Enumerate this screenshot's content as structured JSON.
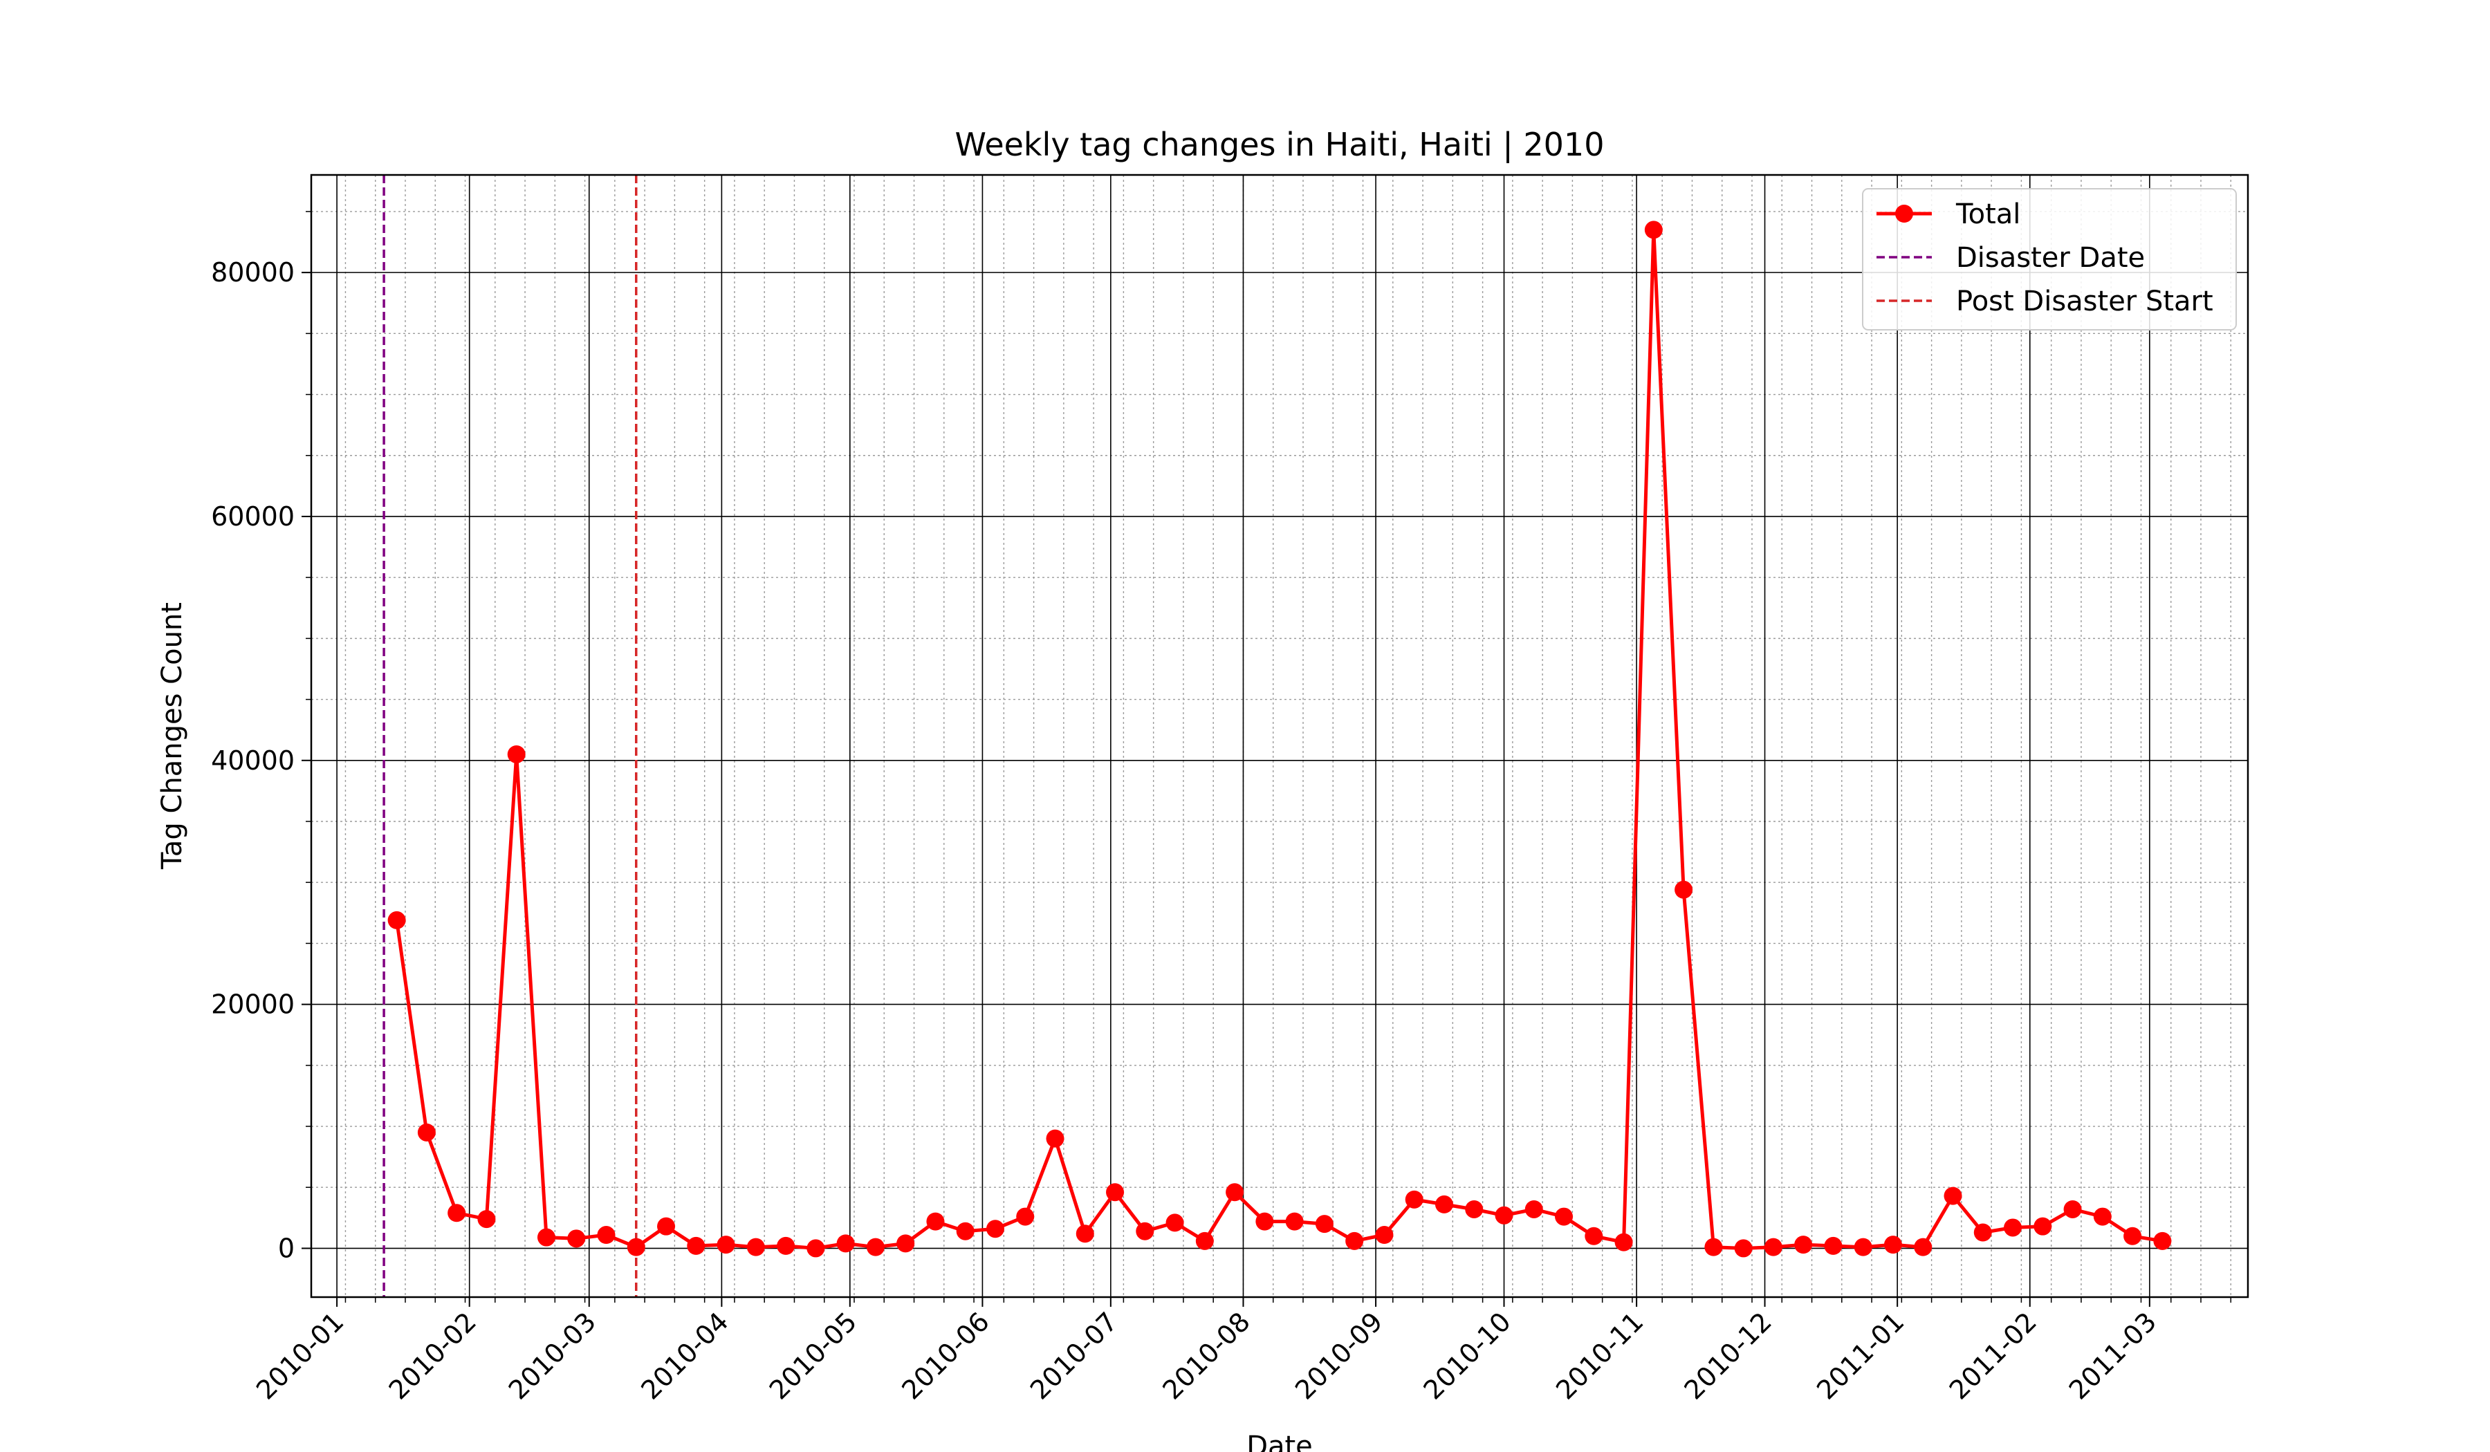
{
  "chart_data": {
    "type": "line",
    "title": "Weekly tag changes in Haiti, Haiti | 2010",
    "xlabel": "Date",
    "ylabel": "Tag Changes Count",
    "ylim": [
      -4000,
      88000
    ],
    "xlim": [
      "2009-12-26",
      "2011-03-24"
    ],
    "grid": true,
    "legend_position": "top-right",
    "x_ticks": [
      {
        "date": "2010-01-01",
        "label": "2010-01"
      },
      {
        "date": "2010-02-01",
        "label": "2010-02"
      },
      {
        "date": "2010-03-01",
        "label": "2010-03"
      },
      {
        "date": "2010-04-01",
        "label": "2010-04"
      },
      {
        "date": "2010-05-01",
        "label": "2010-05"
      },
      {
        "date": "2010-06-01",
        "label": "2010-06"
      },
      {
        "date": "2010-07-01",
        "label": "2010-07"
      },
      {
        "date": "2010-08-01",
        "label": "2010-08"
      },
      {
        "date": "2010-09-01",
        "label": "2010-09"
      },
      {
        "date": "2010-10-01",
        "label": "2010-10"
      },
      {
        "date": "2010-11-01",
        "label": "2010-11"
      },
      {
        "date": "2010-12-01",
        "label": "2010-12"
      },
      {
        "date": "2011-01-01",
        "label": "2011-01"
      },
      {
        "date": "2011-02-01",
        "label": "2011-02"
      },
      {
        "date": "2011-03-01",
        "label": "2011-03"
      }
    ],
    "y_ticks": [
      0,
      20000,
      40000,
      60000,
      80000
    ],
    "series": [
      {
        "name": "Total",
        "color": "#ff0000",
        "marker": "circle",
        "x": [
          "2010-01-15",
          "2010-01-22",
          "2010-01-29",
          "2010-02-05",
          "2010-02-12",
          "2010-02-19",
          "2010-02-26",
          "2010-03-05",
          "2010-03-12",
          "2010-03-19",
          "2010-03-26",
          "2010-04-02",
          "2010-04-09",
          "2010-04-16",
          "2010-04-23",
          "2010-04-30",
          "2010-05-07",
          "2010-05-14",
          "2010-05-21",
          "2010-05-28",
          "2010-06-04",
          "2010-06-11",
          "2010-06-18",
          "2010-06-25",
          "2010-07-02",
          "2010-07-09",
          "2010-07-16",
          "2010-07-23",
          "2010-07-30",
          "2010-08-06",
          "2010-08-13",
          "2010-08-20",
          "2010-08-27",
          "2010-09-03",
          "2010-09-10",
          "2010-09-17",
          "2010-09-24",
          "2010-10-01",
          "2010-10-08",
          "2010-10-15",
          "2010-10-22",
          "2010-10-29",
          "2010-11-05",
          "2010-11-12",
          "2010-11-19",
          "2010-11-26",
          "2010-12-03",
          "2010-12-10",
          "2010-12-17",
          "2010-12-24",
          "2010-12-31",
          "2011-01-07",
          "2011-01-14",
          "2011-01-21",
          "2011-01-28",
          "2011-02-04",
          "2011-02-11",
          "2011-02-18",
          "2011-02-25",
          "2011-03-04"
        ],
        "values": [
          26900,
          9500,
          2900,
          2400,
          40500,
          900,
          800,
          1100,
          100,
          1800,
          200,
          300,
          100,
          200,
          0,
          400,
          100,
          400,
          2200,
          1400,
          1600,
          2600,
          9000,
          1200,
          4600,
          1400,
          2100,
          600,
          4600,
          2200,
          2200,
          2000,
          600,
          1100,
          4000,
          3600,
          3200,
          2700,
          3200,
          2600,
          1000,
          500,
          83500,
          29400,
          100,
          0,
          100,
          300,
          200,
          100,
          300,
          100,
          4300,
          1300,
          1700,
          1800,
          3200,
          2600,
          1000,
          600
        ]
      }
    ],
    "vlines": [
      {
        "name": "Disaster Date",
        "date": "2010-01-12",
        "color": "#800080",
        "style": "dashed"
      },
      {
        "name": "Post Disaster Start",
        "date": "2010-03-12",
        "color": "#d62728",
        "style": "dashed"
      }
    ]
  }
}
